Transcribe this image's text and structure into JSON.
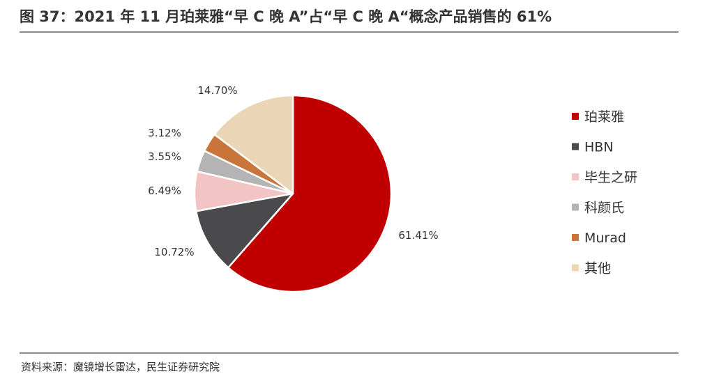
{
  "figure": {
    "title": "图 37：2021 年 11 月珀莱雅“早 C 晚 A”占“早 C 晚 A“概念产品销售的 61%",
    "source": "资料来源：魔镜增长雷达，民生证券研究院"
  },
  "chart_data": {
    "type": "pie",
    "categories": [
      "珀莱雅",
      "HBN",
      "毕生之研",
      "科颜氏",
      "Murad",
      "其他"
    ],
    "values": [
      61.41,
      10.72,
      6.49,
      3.55,
      3.12,
      14.7
    ],
    "labels": [
      "61.41%",
      "10.72%",
      "6.49%",
      "3.55%",
      "3.12%",
      "14.70%"
    ],
    "colors": [
      "#c00000",
      "#4a4a4c",
      "#f2c4c4",
      "#b4b4b4",
      "#c8743a",
      "#ead6b6"
    ],
    "legend_position": "right"
  }
}
